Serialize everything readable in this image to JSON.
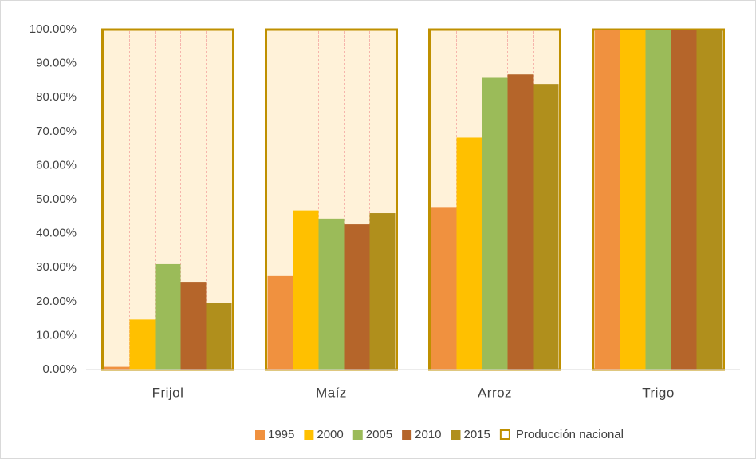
{
  "chart_data": {
    "type": "bar",
    "categories": [
      "Frijol",
      "Maíz",
      "Arroz",
      "Trigo"
    ],
    "series": [
      {
        "name": "1995",
        "color": "#f0913f",
        "values": [
          0.8,
          27.5,
          47.8,
          100
        ]
      },
      {
        "name": "2000",
        "color": "#ffc000",
        "values": [
          14.7,
          46.8,
          68.2,
          100
        ]
      },
      {
        "name": "2005",
        "color": "#9bbb59",
        "values": [
          31,
          44.4,
          85.8,
          100
        ]
      },
      {
        "name": "2010",
        "color": "#b5652a",
        "values": [
          25.8,
          42.7,
          86.8,
          100
        ]
      },
      {
        "name": "2015",
        "color": "#b08f1c",
        "values": [
          19.5,
          46,
          84,
          100
        ]
      }
    ],
    "total": {
      "name": "Producción nacional",
      "color": "#bf9000",
      "fill": "#fff2d9",
      "values": [
        100,
        100,
        100,
        100
      ]
    },
    "ylim": [
      0,
      100
    ],
    "yticks": [
      {
        "value": 0,
        "label": "0.00%"
      },
      {
        "value": 10,
        "label": "10.00%"
      },
      {
        "value": 20,
        "label": "20.00%"
      },
      {
        "value": 30,
        "label": "30.00%"
      },
      {
        "value": 40,
        "label": "40.00%"
      },
      {
        "value": 50,
        "label": "50.00%"
      },
      {
        "value": 60,
        "label": "60.00%"
      },
      {
        "value": 70,
        "label": "70.00%"
      },
      {
        "value": 80,
        "label": "80.00%"
      },
      {
        "value": 90,
        "label": "90.00%"
      },
      {
        "value": 100,
        "label": "100.00%"
      }
    ],
    "legend": "bottom"
  }
}
